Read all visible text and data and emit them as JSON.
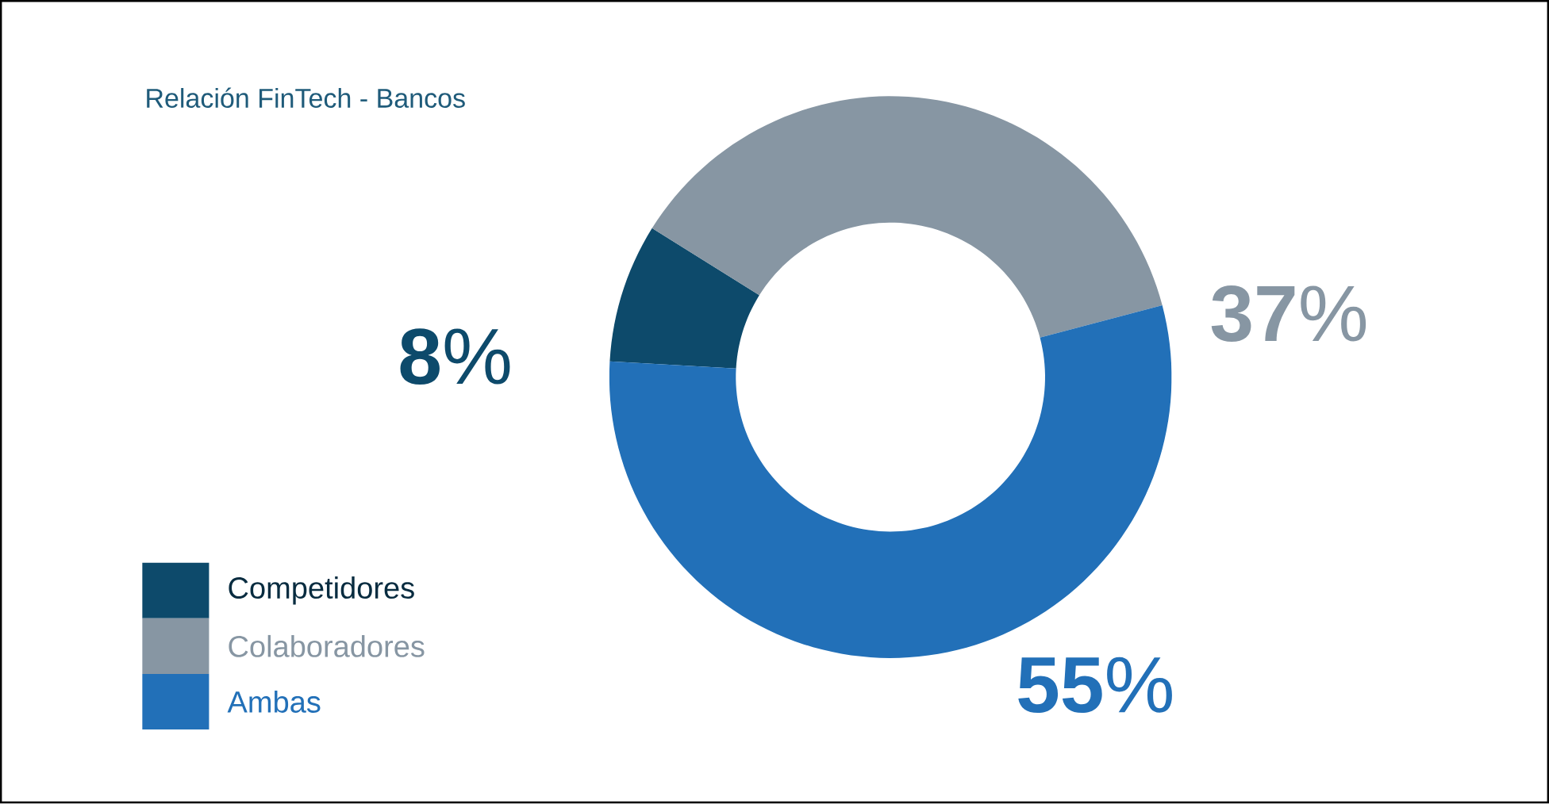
{
  "chart_data": {
    "type": "donut",
    "title": "Relación FinTech - Bancos",
    "categories": [
      "Competidores",
      "Colaboradores",
      "Ambas"
    ],
    "values": [
      8,
      37,
      55
    ],
    "colors": [
      "#0d4a6b",
      "#8796a3",
      "#2270b8"
    ],
    "value_labels": [
      "**8**%",
      "**37**%",
      "**55**%"
    ],
    "legend": "bottom left"
  }
}
